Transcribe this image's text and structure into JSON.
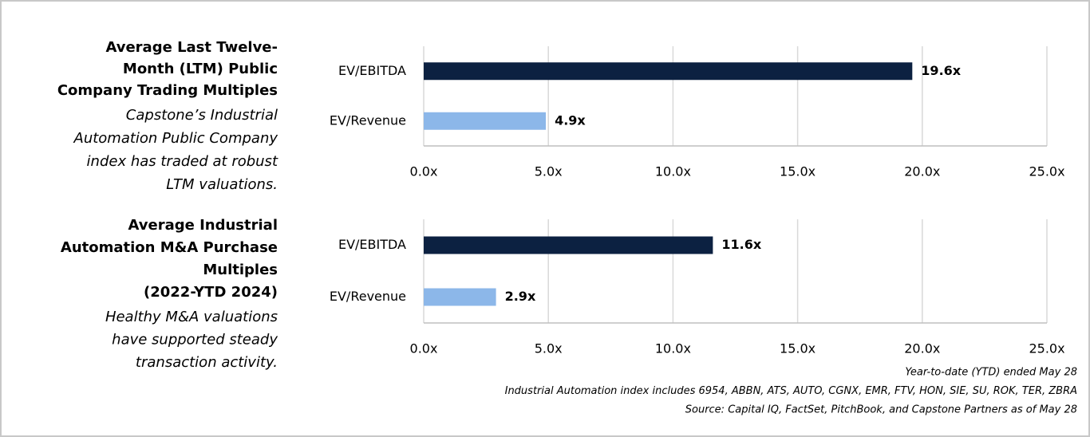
{
  "chart_data": [
    {
      "type": "bar",
      "orientation": "horizontal",
      "title": [
        "Average Last Twelve-",
        "Month (LTM) Public",
        "Company Trading Multiples"
      ],
      "subtitle": [
        "Capstone’s Industrial",
        "Automation Public Company",
        "index has traded at robust",
        "LTM valuations."
      ],
      "categories": [
        "EV/EBITDA",
        "EV/Revenue"
      ],
      "values": [
        19.6,
        4.9
      ],
      "value_labels": [
        "19.6x",
        "4.9x"
      ],
      "colors": [
        "#0c2141",
        "#8cb7e9"
      ],
      "xlim": [
        0,
        25
      ],
      "xticks": [
        {
          "value": 0,
          "label": "0.0x"
        },
        {
          "value": 5,
          "label": "5.0x"
        },
        {
          "value": 10,
          "label": "10.0x"
        },
        {
          "value": 15,
          "label": "15.0x"
        },
        {
          "value": 20,
          "label": "20.0x"
        },
        {
          "value": 25,
          "label": "25.0x"
        }
      ],
      "grid": true
    },
    {
      "type": "bar",
      "orientation": "horizontal",
      "title": [
        "Average Industrial",
        "Automation M&A Purchase",
        "Multiples",
        "(2022-YTD 2024)"
      ],
      "subtitle": [
        "Healthy M&A valuations",
        "have supported steady",
        "transaction activity."
      ],
      "categories": [
        "EV/EBITDA",
        "EV/Revenue"
      ],
      "values": [
        11.6,
        2.9
      ],
      "value_labels": [
        "11.6x",
        "2.9x"
      ],
      "colors": [
        "#0c2141",
        "#8cb7e9"
      ],
      "xlim": [
        0,
        25
      ],
      "xticks": [
        {
          "value": 0,
          "label": "0.0x"
        },
        {
          "value": 5,
          "label": "5.0x"
        },
        {
          "value": 10,
          "label": "10.0x"
        },
        {
          "value": 15,
          "label": "15.0x"
        },
        {
          "value": 20,
          "label": "20.0x"
        },
        {
          "value": 25,
          "label": "25.0x"
        }
      ],
      "grid": true
    }
  ],
  "notes": [
    "Year-to-date (YTD) ended May 28",
    "Industrial Automation index includes 6954, ABBN, ATS, AUTO, CGNX, EMR, FTV, HON, SIE, SU, ROK, TER, ZBRA",
    "Source: Capital IQ, FactSet, PitchBook, and Capstone Partners as of May 28"
  ]
}
